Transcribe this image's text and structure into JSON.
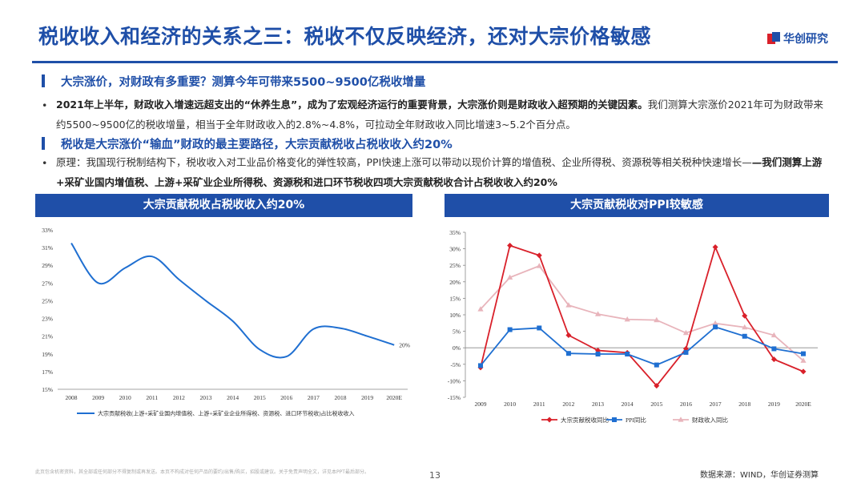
{
  "header": {
    "title": "税收收入和经济的关系之三：税收不仅反映经济，还对大宗价格敏感",
    "logo_text": "华创研究"
  },
  "sections": [
    {
      "heading": "大宗涨价，对财政有多重要？测算今年可带来5500~9500亿税收增量",
      "paragraph_bold": "2021年上半年，财政收入增速远超支出的“休养生息”，成为了宏观经济运行的重要背景，大宗涨价则是财政收入超预期的关键因素。",
      "paragraph_rest": "我们测算大宗涨价2021年可为财政带来约5500~9500亿的税收增量，相当于全年财政收入的2.8%~4.8%，可拉动全年财政收入同比增速3~5.2个百分点。"
    },
    {
      "heading": "税收是大宗涨价“输血”财政的最主要路径，大宗贡献税收占税收收入约20%",
      "paragraph_rest": "原理：我国现行税制结构下，税收收入对工业品价格变化的弹性较高，PPI快速上涨可以带动以现价计算的增值税、企业所得税、资源税等相关税种快速增长—",
      "paragraph_bold": "—我们测算上游+采矿业国内增值税、上游+采矿业企业所得税、资源税和进口环节税收四项大宗贡献税收合计占税收收入约20%"
    }
  ],
  "bullet_symbol": "•",
  "panels": {
    "left_title": "大宗贡献税收占税收收入约20%",
    "right_title": "大宗贡献税收对PPI较敏感"
  },
  "colors": {
    "brand": "#1f4fa8",
    "red": "#d9202a",
    "blue": "#1f6fd1",
    "pink": "#e8b4bb"
  },
  "chart_data": [
    {
      "type": "line",
      "x": [
        "2008",
        "2009",
        "2010",
        "2011",
        "2012",
        "2013",
        "2014",
        "2015",
        "2016",
        "2017",
        "2018",
        "2019",
        "2020E"
      ],
      "series": [
        {
          "name": "大宗贡献税收(上游+采矿业国内增值税、上游+采矿业企业所得税、资源税、进口环节税收)占比税收收入",
          "values": [
            31.5,
            27.0,
            28.7,
            30.0,
            27.4,
            25.0,
            22.7,
            19.5,
            18.7,
            21.8,
            21.9,
            21.0,
            20.0
          ]
        }
      ],
      "ylim": [
        15,
        33
      ],
      "yticks": [
        "15%",
        "17%",
        "19%",
        "21%",
        "23%",
        "25%",
        "27%",
        "29%",
        "31%",
        "33%"
      ],
      "annotations": [
        {
          "x": "2020E",
          "text": "20%"
        }
      ],
      "legend_position": "bottom",
      "grid": false
    },
    {
      "type": "line",
      "x": [
        "2009",
        "2010",
        "2011",
        "2012",
        "2013",
        "2014",
        "2015",
        "2016",
        "2017",
        "2018",
        "2019",
        "2020E"
      ],
      "series": [
        {
          "name": "大宗贡献税收同比",
          "values": [
            -6.0,
            31.0,
            28.0,
            3.8,
            -0.8,
            -1.5,
            -11.5,
            -0.3,
            30.5,
            9.7,
            -3.5,
            -7.2
          ]
        },
        {
          "name": "PPI同比",
          "values": [
            -5.4,
            5.5,
            6.0,
            -1.7,
            -1.9,
            -1.9,
            -5.2,
            -1.4,
            6.3,
            3.5,
            -0.3,
            -1.8
          ]
        },
        {
          "name": "财政收入同比",
          "values": [
            11.7,
            21.3,
            24.8,
            12.9,
            10.2,
            8.6,
            8.4,
            4.5,
            7.4,
            6.2,
            3.8,
            -3.9
          ]
        }
      ],
      "ylim": [
        -15,
        35
      ],
      "yticks": [
        "-15%",
        "-10%",
        "-5%",
        "0%",
        "5%",
        "10%",
        "15%",
        "20%",
        "25%",
        "30%",
        "35%"
      ],
      "legend_position": "bottom",
      "grid": false
    }
  ],
  "footer": {
    "disclaimer": "此页包含机密资料，其全部或任何部分不得复制或再发送。本页不构成对任何产品的要约/出售/购买，招股或建议。关于免责声明全文，详见本PPT最后部分。",
    "page_number": "13",
    "source": "数据来源：WIND，华创证券测算"
  }
}
